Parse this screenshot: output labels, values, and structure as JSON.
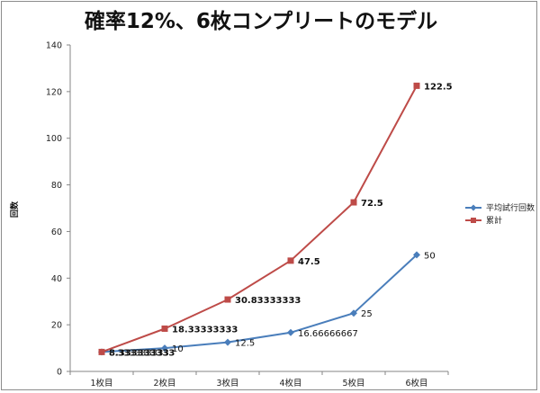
{
  "chart_data": {
    "type": "line",
    "title": "確率12%、6枚コンプリートのモデル",
    "xlabel": "",
    "ylabel": "回数",
    "categories": [
      "1枚目",
      "2枚目",
      "3枚目",
      "4枚目",
      "5枚目",
      "6枚目"
    ],
    "ylim": [
      0,
      140
    ],
    "yticks": [
      0,
      20,
      40,
      60,
      80,
      100,
      120,
      140
    ],
    "grid": false,
    "legend_position": "right",
    "series": [
      {
        "name": "平均試行回数",
        "color": "#4a7ebb",
        "marker": "diamond",
        "values": [
          8.333333333,
          10,
          12.5,
          16.66666667,
          25,
          50
        ],
        "labels": [
          "8.333333333",
          "10",
          "12.5",
          "16.66666667",
          "25",
          "50"
        ],
        "label_bold": false
      },
      {
        "name": "累計",
        "color": "#be4b48",
        "marker": "square",
        "values": [
          8.333333333,
          18.33333333,
          30.83333333,
          47.5,
          72.5,
          122.5
        ],
        "labels": [
          "8.333333333",
          "18.33333333",
          "30.83333333",
          "47.5",
          "72.5",
          "122.5"
        ],
        "label_bold": true
      }
    ]
  }
}
